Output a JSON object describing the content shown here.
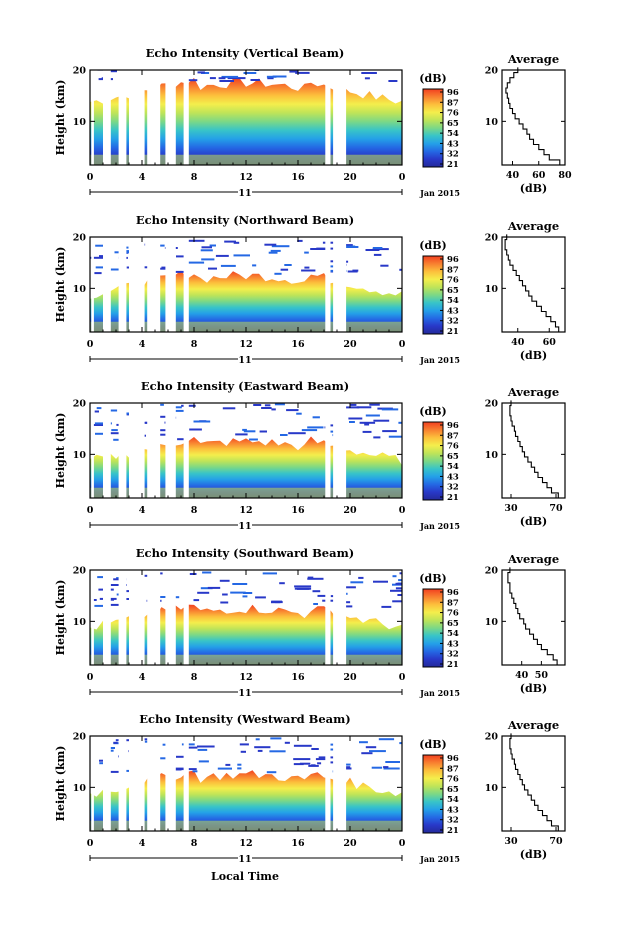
{
  "page": {
    "xlabel": "Local Time"
  },
  "colorbar": {
    "unit": "(dB)",
    "labels": [
      "96",
      "87",
      "76",
      "65",
      "54",
      "43",
      "32",
      "21"
    ],
    "colors": [
      "#f24020",
      "#f88030",
      "#fcc03c",
      "#f4ee4c",
      "#bfe458",
      "#7cd886",
      "#38c4c8",
      "#24a0e8",
      "#2468e4",
      "#2838c8",
      "#242a9a"
    ]
  },
  "chart_data": [
    {
      "type": "heatmap",
      "title": "Echo Intensity (Vertical Beam)",
      "ylabel": "Height (km)",
      "ylim": [
        1.5,
        20
      ],
      "yticks": [
        "20",
        "10"
      ],
      "xlim": [
        0,
        24
      ],
      "xticks": [
        "0",
        "4",
        "8",
        "12",
        "16",
        "20",
        "0"
      ],
      "day_label": "11",
      "date_label": "Jan 2015",
      "data_gaps_hours": [
        [
          0.1,
          0.3
        ],
        [
          1.0,
          1.6
        ],
        [
          2.2,
          2.8
        ],
        [
          3.0,
          4.2
        ],
        [
          4.4,
          5.4
        ],
        [
          5.8,
          6.6
        ],
        [
          7.2,
          7.6
        ],
        [
          18.1,
          18.5
        ],
        [
          18.7,
          19.7
        ]
      ],
      "profile": {
        "title": "Average",
        "xlabel": "(dB)",
        "xlim": [
          32,
          80
        ],
        "xticks": [
          "40",
          "60",
          "80"
        ],
        "yticks": [
          "20",
          "10"
        ],
        "height_km": [
          2,
          3,
          4,
          5,
          6,
          7,
          8,
          9,
          10,
          11,
          12,
          13,
          14,
          15,
          16,
          17,
          18,
          19,
          20
        ],
        "intensity_db": [
          76,
          68,
          64,
          60,
          56,
          53,
          51,
          48,
          45,
          42,
          40,
          38,
          37,
          36,
          35,
          36,
          38,
          41,
          44
        ]
      }
    },
    {
      "type": "heatmap",
      "title": "Echo Intensity (Northward Beam)",
      "ylabel": "Height (km)",
      "ylim": [
        1.5,
        20
      ],
      "yticks": [
        "20",
        "10"
      ],
      "xlim": [
        0,
        24
      ],
      "xticks": [
        "0",
        "4",
        "8",
        "12",
        "16",
        "20",
        "0"
      ],
      "day_label": "11",
      "date_label": "Jan 2015",
      "data_gaps_hours": [
        [
          0.1,
          0.3
        ],
        [
          1.0,
          1.6
        ],
        [
          2.2,
          2.8
        ],
        [
          3.0,
          4.2
        ],
        [
          4.4,
          5.4
        ],
        [
          5.8,
          6.6
        ],
        [
          7.2,
          7.6
        ],
        [
          18.1,
          18.5
        ],
        [
          18.7,
          19.7
        ]
      ],
      "profile": {
        "title": "Average",
        "xlabel": "(dB)",
        "xlim": [
          30,
          70
        ],
        "xticks": [
          "40",
          "60"
        ],
        "yticks": [
          "20",
          "10"
        ],
        "height_km": [
          2,
          3,
          4,
          5,
          6,
          7,
          8,
          9,
          10,
          11,
          12,
          13,
          14,
          15,
          16,
          17,
          18,
          19,
          20
        ],
        "intensity_db": [
          66,
          64,
          61,
          58,
          55,
          52,
          49,
          47,
          45,
          43,
          41,
          39,
          37,
          35,
          34,
          33,
          32,
          32,
          33
        ]
      }
    },
    {
      "type": "heatmap",
      "title": "Echo Intensity (Eastward Beam)",
      "ylabel": "Height (km)",
      "ylim": [
        1.5,
        20
      ],
      "yticks": [
        "20",
        "10"
      ],
      "xlim": [
        0,
        24
      ],
      "xticks": [
        "0",
        "4",
        "8",
        "12",
        "16",
        "20",
        "0"
      ],
      "day_label": "11",
      "date_label": "Jan 2015",
      "data_gaps_hours": [
        [
          0.1,
          0.3
        ],
        [
          1.0,
          1.6
        ],
        [
          2.2,
          2.8
        ],
        [
          3.0,
          4.2
        ],
        [
          4.4,
          5.4
        ],
        [
          5.8,
          6.6
        ],
        [
          7.2,
          7.6
        ],
        [
          18.1,
          18.5
        ],
        [
          18.7,
          19.7
        ]
      ],
      "profile": {
        "title": "Average",
        "xlabel": "(dB)",
        "xlim": [
          22,
          78
        ],
        "xticks": [
          "30",
          "70"
        ],
        "yticks": [
          "20",
          "10"
        ],
        "height_km": [
          2,
          3,
          4,
          5,
          6,
          7,
          8,
          9,
          10,
          11,
          12,
          13,
          14,
          15,
          16,
          17,
          18,
          19,
          20
        ],
        "intensity_db": [
          72,
          66,
          62,
          58,
          54,
          51,
          48,
          45,
          42,
          40,
          38,
          36,
          34,
          33,
          31,
          30,
          29,
          29,
          30
        ]
      }
    },
    {
      "type": "heatmap",
      "title": "Echo Intensity (Southward Beam)",
      "ylabel": "Height (km)",
      "ylim": [
        1.5,
        20
      ],
      "yticks": [
        "20",
        "10"
      ],
      "xlim": [
        0,
        24
      ],
      "xticks": [
        "0",
        "4",
        "8",
        "12",
        "16",
        "20",
        "0"
      ],
      "day_label": "11",
      "date_label": "Jan 2015",
      "data_gaps_hours": [
        [
          0.1,
          0.3
        ],
        [
          1.0,
          1.6
        ],
        [
          2.2,
          2.8
        ],
        [
          3.0,
          4.2
        ],
        [
          4.4,
          5.4
        ],
        [
          5.8,
          6.6
        ],
        [
          7.2,
          7.6
        ],
        [
          18.1,
          18.5
        ],
        [
          18.7,
          19.7
        ]
      ],
      "profile": {
        "title": "Average",
        "xlabel": "(dB)",
        "xlim": [
          30,
          62
        ],
        "xticks": [
          "40",
          "50"
        ],
        "yticks": [
          "20",
          "10"
        ],
        "height_km": [
          2,
          3,
          4,
          5,
          6,
          7,
          8,
          9,
          10,
          11,
          12,
          13,
          14,
          15,
          16,
          17,
          18,
          19,
          20
        ],
        "intensity_db": [
          58,
          56,
          53,
          50,
          48,
          46,
          44,
          42,
          41,
          39,
          38,
          37,
          36,
          35,
          34,
          34,
          33,
          33,
          34
        ]
      }
    },
    {
      "type": "heatmap",
      "title": "Echo Intensity (Westward Beam)",
      "ylabel": "Height (km)",
      "ylim": [
        1.5,
        20
      ],
      "yticks": [
        "20",
        "10"
      ],
      "xlim": [
        0,
        24
      ],
      "xticks": [
        "0",
        "4",
        "8",
        "12",
        "16",
        "20",
        "0"
      ],
      "day_label": "11",
      "date_label": "Jan 2015",
      "data_gaps_hours": [
        [
          0.1,
          0.3
        ],
        [
          1.0,
          1.6
        ],
        [
          2.2,
          2.8
        ],
        [
          3.0,
          4.2
        ],
        [
          4.4,
          5.4
        ],
        [
          5.8,
          6.6
        ],
        [
          7.2,
          7.6
        ],
        [
          18.1,
          18.5
        ],
        [
          18.7,
          19.7
        ]
      ],
      "profile": {
        "title": "Average",
        "xlabel": "(dB)",
        "xlim": [
          22,
          78
        ],
        "xticks": [
          "30",
          "70"
        ],
        "yticks": [
          "20",
          "10"
        ],
        "height_km": [
          2,
          3,
          4,
          5,
          6,
          7,
          8,
          9,
          10,
          11,
          12,
          13,
          14,
          15,
          16,
          17,
          18,
          19,
          20
        ],
        "intensity_db": [
          72,
          66,
          62,
          58,
          54,
          51,
          48,
          45,
          42,
          40,
          38,
          36,
          34,
          33,
          31,
          30,
          29,
          29,
          30
        ]
      }
    }
  ]
}
